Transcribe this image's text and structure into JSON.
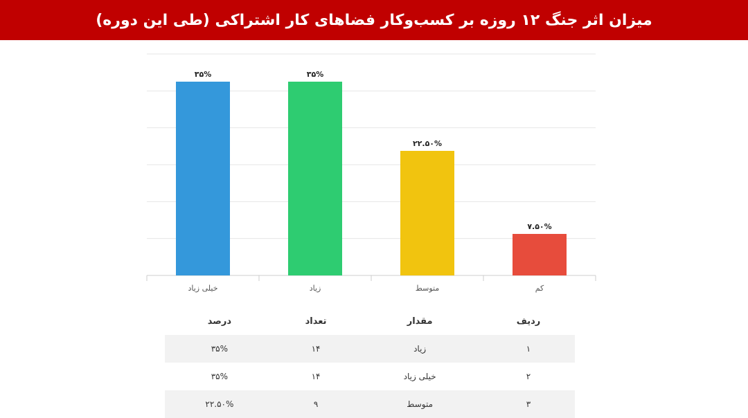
{
  "header": {
    "title": "میزان اثر جنگ ۱۲ روزه بر کسب‌وکار فضاهای کار اشتراکی (طی این دوره)"
  },
  "colors": {
    "header_bg": "#c00000",
    "grid": "#e6e6e6",
    "axis": "#cccccc"
  },
  "chart_data": {
    "type": "bar",
    "categories": [
      "خیلی زیاد",
      "زیاد",
      "متوسط",
      "کم"
    ],
    "values": [
      35,
      35,
      22.5,
      7.5
    ],
    "data_labels": [
      "۳۵%",
      "۳۵%",
      "۲۲.۵۰%",
      "۷.۵۰%"
    ],
    "colors": [
      "#3498db",
      "#2ecc71",
      "#f1c40f",
      "#e74c3c"
    ],
    "ylim": [
      0,
      40
    ],
    "grid": true,
    "title": "",
    "xlabel": "",
    "ylabel": ""
  },
  "table": {
    "headers": [
      "ردیف",
      "مقدار",
      "تعداد",
      "درصد"
    ],
    "rows": [
      [
        "۱",
        "زیاد",
        "۱۴",
        "۳۵%"
      ],
      [
        "۲",
        "خیلی زیاد",
        "۱۴",
        "۳۵%"
      ],
      [
        "۳",
        "متوسط",
        "۹",
        "۲۲.۵۰%"
      ]
    ]
  }
}
